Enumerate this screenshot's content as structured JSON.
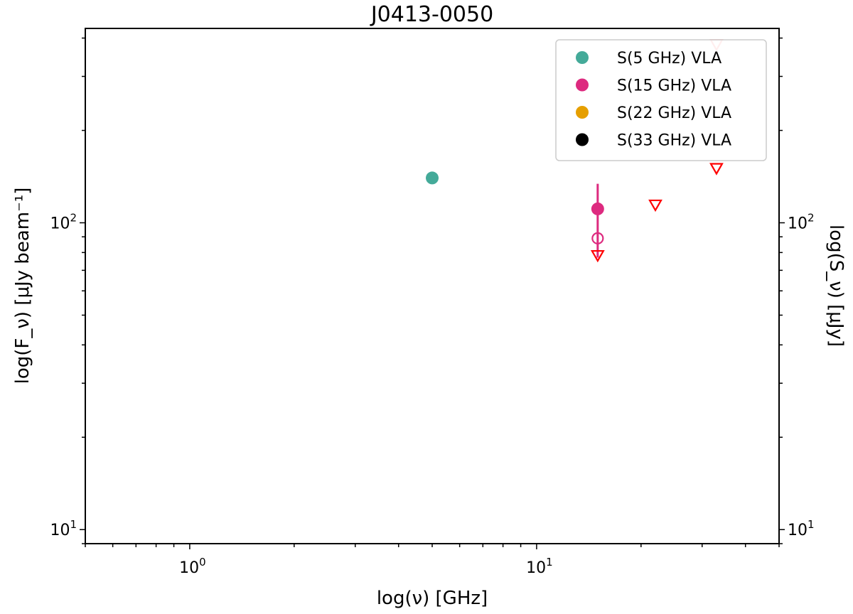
{
  "chart_data": {
    "type": "scatter",
    "title": "J0413-0050",
    "xlabel": "log(ν) [GHz]",
    "ylabel": "log(F_ν) [μJy beam⁻¹]",
    "ylabel_right": "log(S_ν) [μJy]",
    "xscale": "log",
    "yscale": "log",
    "xlim": [
      0.5,
      50
    ],
    "ylim": [
      9,
      430
    ],
    "x_tick_labels": [
      {
        "value": 1,
        "label": "10^0"
      },
      {
        "value": 10,
        "label": "10^1"
      }
    ],
    "y_tick_labels": [
      {
        "value": 10,
        "label": "10^1"
      },
      {
        "value": 100,
        "label": "10^2"
      }
    ],
    "grid": false,
    "legend_position": "top-right",
    "legend": [
      {
        "label": "S(5 GHz) VLA",
        "color": "#44aa99"
      },
      {
        "label": "S(15 GHz) VLA",
        "color": "#dd2a7f"
      },
      {
        "label": "S(22 GHz) VLA",
        "color": "#e69f00"
      },
      {
        "label": "S(33 GHz) VLA",
        "color": "#000000"
      }
    ],
    "points": [
      {
        "x": 5,
        "y": 140,
        "marker": "filled-circle",
        "color": "#44aa99"
      },
      {
        "x": 15,
        "y": 111,
        "marker": "filled-circle",
        "color": "#dd2a7f",
        "yerr": [
          77,
          134
        ]
      },
      {
        "x": 15,
        "y": 89,
        "marker": "open-circle",
        "color": "#dd2a7f"
      },
      {
        "x": 15,
        "y": 78,
        "marker": "upper-limit-triangle",
        "color": "#ff0000"
      },
      {
        "x": 22,
        "y": 114,
        "marker": "upper-limit-triangle",
        "color": "#ff0000"
      },
      {
        "x": 33,
        "y": 150,
        "marker": "upper-limit-triangle",
        "color": "#ff0000"
      },
      {
        "x": 33,
        "y": 380,
        "marker": "upper-limit-triangle",
        "color": "#ffaaaa"
      }
    ]
  }
}
